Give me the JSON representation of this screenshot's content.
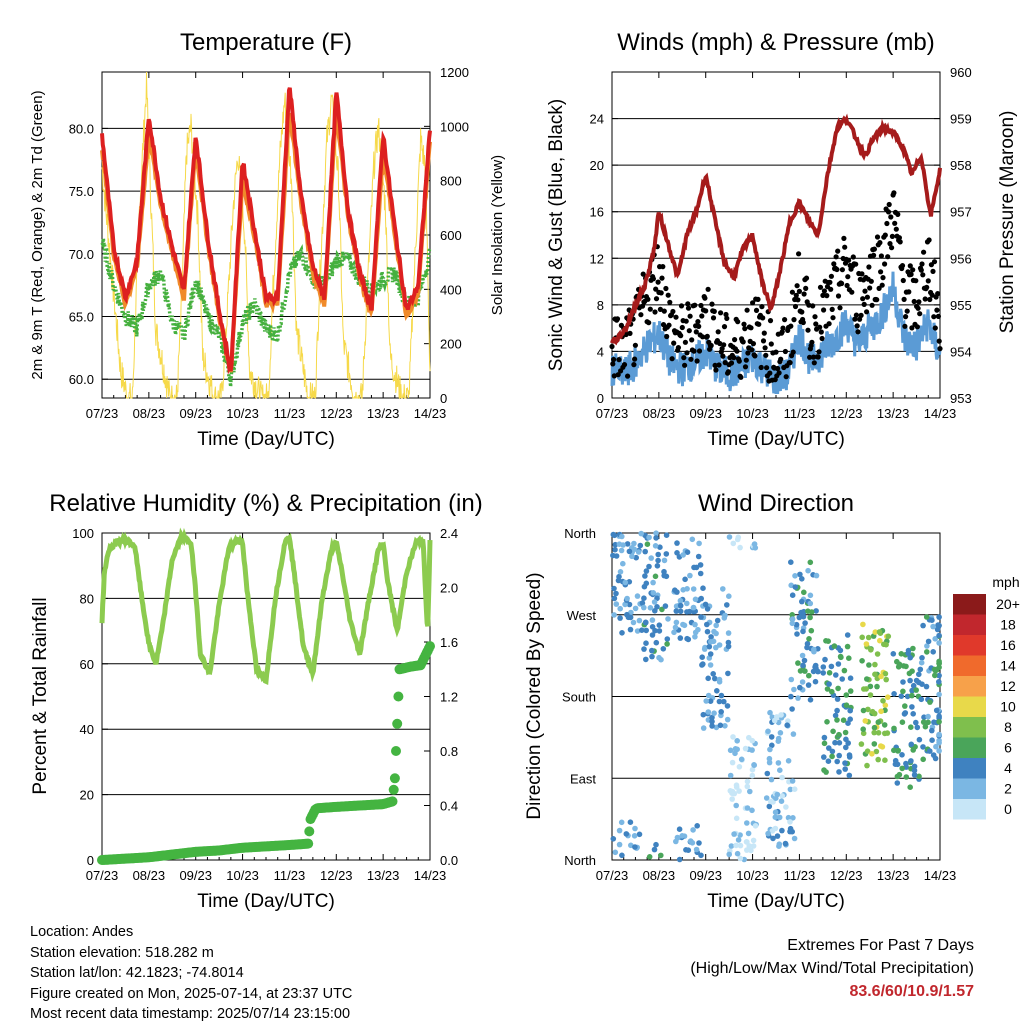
{
  "xticks": [
    "07/23",
    "08/23",
    "09/23",
    "10/23",
    "11/23",
    "12/23",
    "13/23",
    "14/23"
  ],
  "colors": {
    "temp_red": "#dd2020",
    "temp_orange": "#f08a2a",
    "dewpoint_green": "#45b03e",
    "insolation_yellow": "#f6d94a",
    "wind_blue": "#5b9bd5",
    "gust_black": "#000000",
    "pressure_maroon": "#a51b1b",
    "rh_lightgreen": "#8ccb4f",
    "rain_green": "#44b441",
    "extremes_red": "#c1272d"
  },
  "chart_data": [
    {
      "type": "line",
      "title": "Temperature (F)",
      "xlabel": "Time (Day/UTC)",
      "ylabel": "2m & 9m T (Red, Orange) & 2m Td (Green)",
      "ylabel_right": "Solar Insolation (Yellow)",
      "ylim": [
        58.5,
        84.5
      ],
      "ylim_right": [
        0,
        1200
      ],
      "yticks": [
        60.0,
        65.0,
        70.0,
        75.0,
        80.0
      ],
      "yticks_right": [
        0,
        200,
        400,
        600,
        800,
        1000,
        1200
      ],
      "series": [
        {
          "color": "temp_red",
          "x": [
            0,
            0.25,
            0.5,
            0.75,
            1.0,
            1.25,
            1.5,
            1.75,
            2.0,
            2.25,
            2.5,
            2.75,
            3.0,
            3.25,
            3.5,
            3.75,
            4.0,
            4.25,
            4.5,
            4.75,
            5.0,
            5.25,
            5.5,
            5.75,
            6.0,
            6.25,
            6.5,
            6.75,
            7.0
          ],
          "y": [
            79.5,
            70.5,
            66.5,
            69.5,
            81.0,
            74.5,
            70.5,
            67.0,
            79.5,
            71.5,
            65.5,
            60.5,
            77.5,
            72.0,
            66.5,
            66.5,
            83.5,
            74.5,
            69.0,
            66.5,
            83.0,
            73.5,
            68.5,
            65.5,
            79.5,
            72.0,
            65.5,
            67.5,
            80.0
          ]
        },
        {
          "color": "temp_orange",
          "x": [
            0,
            0.25,
            0.5,
            0.75,
            1.0,
            1.25,
            1.5,
            1.75,
            2.0,
            2.25,
            2.5,
            2.75,
            3.0,
            3.25,
            3.5,
            3.75,
            4.0,
            4.25,
            4.5,
            4.75,
            5.0,
            5.25,
            5.5,
            5.75,
            6.0,
            6.25,
            6.5,
            6.75,
            7.0
          ],
          "y": [
            78.5,
            70.0,
            66.0,
            69.0,
            79.5,
            74.0,
            70.0,
            66.5,
            78.5,
            71.0,
            65.0,
            60.5,
            76.0,
            71.5,
            66.0,
            66.0,
            81.5,
            74.0,
            68.5,
            66.0,
            81.5,
            73.0,
            68.0,
            65.0,
            78.0,
            71.5,
            65.0,
            67.0,
            79.0
          ]
        },
        {
          "color": "dewpoint_green",
          "x": [
            0,
            0.25,
            0.5,
            0.75,
            1.0,
            1.25,
            1.5,
            1.75,
            2.0,
            2.25,
            2.5,
            2.75,
            3.0,
            3.25,
            3.5,
            3.75,
            4.0,
            4.25,
            4.5,
            4.75,
            5.0,
            5.25,
            5.5,
            5.75,
            6.0,
            6.25,
            6.5,
            6.75,
            7.0
          ],
          "y": [
            71.0,
            67.5,
            65.0,
            64.0,
            67.5,
            68.5,
            64.5,
            63.5,
            68.0,
            65.0,
            63.5,
            60.0,
            64.5,
            66.0,
            64.0,
            63.5,
            68.5,
            70.0,
            68.0,
            67.5,
            69.5,
            69.5,
            68.0,
            67.0,
            68.0,
            68.5,
            66.0,
            66.5,
            70.0
          ]
        },
        {
          "color": "insolation_yellow",
          "axis": "right",
          "x": [
            0,
            0.4,
            0.55,
            0.65,
            0.8,
            0.95,
            1.05,
            1.15,
            1.45,
            1.6,
            1.7,
            1.8,
            1.9,
            2.05,
            2.15,
            2.4,
            2.55,
            2.65,
            2.8,
            2.9,
            3.05,
            3.15,
            3.4,
            3.55,
            3.65,
            3.8,
            3.9,
            4.05,
            4.15,
            4.4,
            4.55,
            4.65,
            4.8,
            4.9,
            5.05,
            5.15,
            5.4,
            5.55,
            5.65,
            5.8,
            5.9,
            6.05,
            6.15,
            6.4,
            6.55,
            6.65,
            6.8,
            6.9,
            7.0
          ],
          "y": [
            850,
            100,
            0,
            0,
            700,
            1150,
            700,
            250,
            0,
            0,
            350,
            900,
            1000,
            650,
            150,
            0,
            0,
            250,
            700,
            900,
            600,
            100,
            0,
            0,
            400,
            900,
            1100,
            800,
            250,
            0,
            0,
            450,
            950,
            1100,
            800,
            200,
            0,
            0,
            350,
            850,
            1000,
            700,
            150,
            0,
            0,
            400,
            950,
            850,
            100
          ]
        }
      ]
    },
    {
      "type": "line",
      "title": "Winds (mph) & Pressure (mb)",
      "xlabel": "Time (Day/UTC)",
      "ylabel": "Sonic Wind & Gust (Blue, Black)",
      "ylabel_right": "Station Pressure (Maroon)",
      "ylim": [
        0,
        28
      ],
      "ylim_right": [
        953,
        960
      ],
      "yticks": [
        0,
        4,
        8,
        12,
        16,
        20,
        24
      ],
      "yticks_right": [
        953,
        954,
        955,
        956,
        957,
        958,
        959,
        960
      ],
      "series": [
        {
          "color": "pressure_maroon",
          "axis": "right",
          "x": [
            0,
            0.15,
            0.3,
            0.5,
            0.7,
            0.9,
            1.0,
            1.2,
            1.4,
            1.6,
            1.8,
            2.0,
            2.2,
            2.4,
            2.6,
            2.8,
            3.0,
            3.2,
            3.4,
            3.6,
            3.8,
            4.0,
            4.2,
            4.4,
            4.6,
            4.8,
            5.0,
            5.2,
            5.4,
            5.6,
            5.8,
            6.0,
            6.2,
            6.4,
            6.6,
            6.8,
            7.0
          ],
          "y": [
            954.2,
            954.3,
            954.5,
            955.0,
            955.4,
            956.2,
            957.0,
            956.3,
            955.6,
            956.5,
            957.0,
            957.8,
            956.8,
            955.9,
            955.6,
            956.2,
            956.5,
            955.5,
            954.9,
            955.8,
            956.8,
            957.2,
            956.8,
            956.5,
            957.8,
            958.8,
            959.0,
            958.6,
            958.2,
            958.6,
            958.8,
            958.7,
            958.4,
            957.8,
            958.2,
            956.9,
            957.9
          ]
        },
        {
          "color": "wind_blue",
          "x": [
            0,
            0.25,
            0.5,
            0.75,
            1.0,
            1.25,
            1.5,
            1.75,
            2.0,
            2.25,
            2.5,
            2.75,
            3.0,
            3.25,
            3.5,
            3.75,
            4.0,
            4.25,
            4.5,
            4.75,
            5.0,
            5.25,
            5.5,
            5.75,
            6.0,
            6.25,
            6.5,
            6.75,
            7.0
          ],
          "y": [
            2.5,
            2.0,
            3.0,
            4.5,
            5.5,
            3.0,
            2.5,
            3.0,
            4.0,
            2.5,
            2.0,
            2.5,
            3.5,
            2.5,
            1.5,
            2.0,
            5.5,
            3.0,
            4.0,
            5.0,
            6.5,
            4.5,
            6.0,
            7.0,
            9.5,
            5.0,
            4.5,
            6.5,
            3.5
          ]
        },
        {
          "color": "gust_black",
          "x": [
            0,
            0.25,
            0.5,
            0.75,
            1.0,
            1.25,
            1.5,
            1.75,
            2.0,
            2.25,
            2.5,
            2.75,
            3.0,
            3.25,
            3.5,
            3.75,
            4.0,
            4.25,
            4.5,
            4.75,
            5.0,
            5.25,
            5.5,
            5.75,
            6.0,
            6.25,
            6.5,
            6.75,
            7.0
          ],
          "y": [
            4.5,
            4.0,
            5.5,
            9.0,
            11.0,
            6.0,
            5.0,
            5.5,
            7.5,
            5.0,
            4.0,
            4.5,
            6.5,
            5.0,
            3.5,
            4.0,
            10.0,
            5.5,
            7.0,
            9.0,
            11.5,
            8.5,
            10.5,
            12.0,
            16.0,
            9.0,
            8.0,
            12.0,
            6.0
          ]
        }
      ]
    },
    {
      "type": "line",
      "title": "Relative Humidity (%) & Precipitation (in)",
      "xlabel": "Time (Day/UTC)",
      "ylabel": "Percent & Total Rainfall",
      "ylim": [
        0,
        100
      ],
      "ylim_right": [
        0,
        2.4
      ],
      "yticks": [
        0,
        20,
        40,
        60,
        80,
        100
      ],
      "yticks_right": [
        0.0,
        0.4,
        0.8,
        1.2,
        1.6,
        2.0,
        2.4
      ],
      "series": [
        {
          "color": "rh_lightgreen",
          "x": [
            0,
            0.05,
            0.15,
            0.3,
            0.5,
            0.7,
            0.85,
            1.0,
            1.15,
            1.3,
            1.5,
            1.7,
            1.9,
            2.0,
            2.1,
            2.3,
            2.5,
            2.7,
            2.9,
            3.0,
            3.1,
            3.3,
            3.5,
            3.7,
            3.9,
            4.0,
            4.1,
            4.3,
            4.5,
            4.7,
            4.9,
            5.0,
            5.1,
            5.3,
            5.5,
            5.7,
            5.9,
            6.0,
            6.1,
            6.3,
            6.5,
            6.7,
            6.85,
            6.95,
            7.0
          ],
          "y": [
            73,
            88,
            95,
            97,
            98,
            96,
            80,
            66,
            60,
            72,
            92,
            99,
            97,
            82,
            63,
            57,
            78,
            95,
            98,
            97,
            82,
            58,
            55,
            80,
            97,
            99,
            88,
            65,
            57,
            80,
            95,
            97,
            90,
            73,
            63,
            80,
            95,
            97,
            85,
            70,
            88,
            97,
            98,
            69,
            98
          ]
        },
        {
          "color": "rain_green",
          "axis": "right",
          "x": [
            0,
            0.5,
            1.0,
            1.5,
            2.0,
            2.5,
            3.0,
            3.5,
            4.0,
            4.4,
            4.45,
            4.55,
            4.6,
            5.0,
            5.5,
            6.0,
            6.2,
            6.25,
            6.3,
            6.35,
            6.6,
            6.8,
            7.0
          ],
          "y": [
            0.0,
            0.01,
            0.02,
            0.04,
            0.06,
            0.07,
            0.09,
            0.1,
            0.11,
            0.12,
            0.3,
            0.37,
            0.38,
            0.39,
            0.4,
            0.41,
            0.43,
            0.6,
            1.0,
            1.4,
            1.42,
            1.43,
            1.57
          ]
        }
      ]
    },
    {
      "type": "scatter",
      "title": "Wind Direction",
      "xlabel": "Time (Day/UTC)",
      "ylabel": "Direction (Colored By Speed)",
      "ylim": [
        0,
        360
      ],
      "ytick_labels": [
        "North",
        "East",
        "South",
        "West",
        "North"
      ],
      "colorbar": {
        "unit": "mph",
        "labels": [
          "20+",
          "18",
          "16",
          "14",
          "12",
          "10",
          "8",
          "6",
          "4",
          "2",
          "0"
        ],
        "colors": [
          "#8b1a1a",
          "#c1272d",
          "#e0392b",
          "#f06a2c",
          "#f7a14a",
          "#e8d94a",
          "#7fbf4d",
          "#4aa55a",
          "#3f82c0",
          "#7bb7e3",
          "#c7e6f7"
        ]
      },
      "clusters": [
        {
          "x": 0.3,
          "dir": 330,
          "speed": 3
        },
        {
          "x": 0.9,
          "dir": 300,
          "speed": 4
        },
        {
          "x": 1.6,
          "dir": 320,
          "speed": 3
        },
        {
          "x": 2.2,
          "dir": 220,
          "speed": 3
        },
        {
          "x": 2.8,
          "dir": 60,
          "speed": 1
        },
        {
          "x": 3.6,
          "dir": 90,
          "speed": 2
        },
        {
          "x": 4.1,
          "dir": 250,
          "speed": 4
        },
        {
          "x": 4.8,
          "dir": 170,
          "speed": 5
        },
        {
          "x": 5.6,
          "dir": 180,
          "speed": 8
        },
        {
          "x": 6.3,
          "dir": 160,
          "speed": 5
        },
        {
          "x": 6.9,
          "dir": 190,
          "speed": 4
        }
      ]
    }
  ],
  "info": {
    "location": "Location: Andes",
    "elevation": "Station elevation: 518.282 m",
    "latlon": "Station lat/lon: 42.1823; -74.8014",
    "created": "Figure created on Mon, 2025-07-14, at 23:37 UTC",
    "recent": "Most recent data timestamp: 2025/07/14 23:15:00"
  },
  "extremes": {
    "title": "Extremes For Past 7 Days",
    "subtitle": "(High/Low/Max Wind/Total Precipitation)",
    "values": "83.6/60/10.9/1.57"
  }
}
